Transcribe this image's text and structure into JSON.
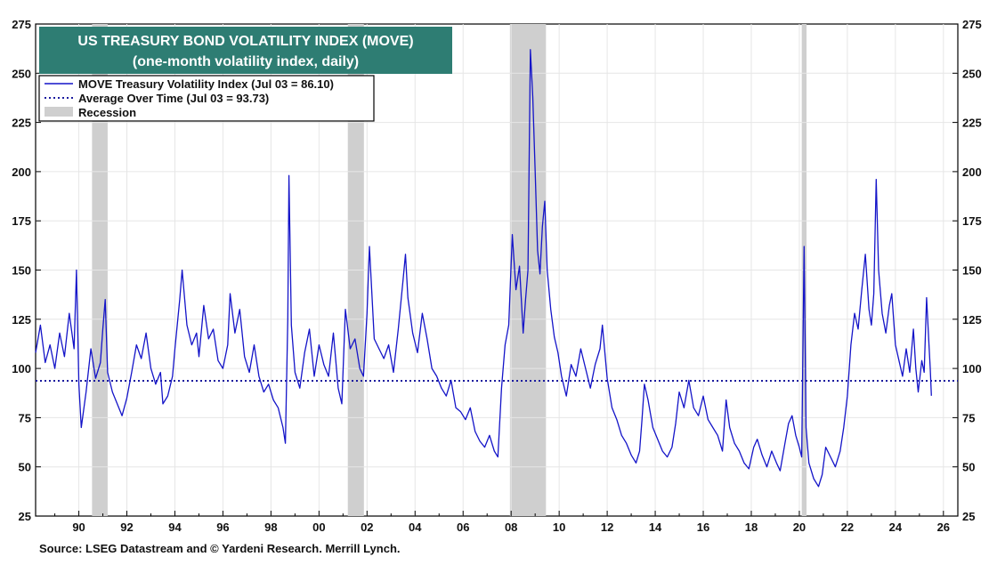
{
  "chart_data": {
    "type": "line",
    "title": "US TREASURY BOND VOLATILITY INDEX (MOVE)",
    "subtitle": "(one-month volatility index, daily)",
    "title_bg": "#2e7d73",
    "legend": {
      "placement": "top-left",
      "items": [
        {
          "label": "MOVE Treasury Volatility Index (Jul 03 = 86.10)",
          "style": "solid-line",
          "color": "#1414c8"
        },
        {
          "label": "Average Over Time (Jul 03 = 93.73)",
          "style": "dotted-line",
          "color": "#1a1a9e"
        },
        {
          "label": "Recession",
          "style": "band",
          "color": "#cfcfcf"
        }
      ]
    },
    "x_tick_labels": [
      "90",
      "92",
      "94",
      "96",
      "98",
      "00",
      "02",
      "04",
      "06",
      "08",
      "10",
      "12",
      "14",
      "16",
      "18",
      "20",
      "22",
      "24",
      "26"
    ],
    "x_tick_years": [
      1990,
      1992,
      1994,
      1996,
      1998,
      2000,
      2002,
      2004,
      2006,
      2008,
      2010,
      2012,
      2014,
      2016,
      2018,
      2020,
      2022,
      2024,
      2026
    ],
    "y_ticks": [
      25,
      50,
      75,
      100,
      125,
      150,
      175,
      200,
      225,
      250,
      275
    ],
    "xlim": [
      1988.2,
      2026.6
    ],
    "ylim": [
      25,
      275
    ],
    "grid": true,
    "average": 93.73,
    "recessions": [
      [
        1990.55,
        1991.2
      ],
      [
        2001.2,
        2001.87
      ],
      [
        2007.95,
        2009.45
      ],
      [
        2020.1,
        2020.3
      ]
    ],
    "series": [
      {
        "name": "MOVE Treasury Volatility Index",
        "color": "#1414c8",
        "points": [
          [
            1988.2,
            108
          ],
          [
            1988.4,
            122
          ],
          [
            1988.6,
            103
          ],
          [
            1988.8,
            112
          ],
          [
            1989.0,
            100
          ],
          [
            1989.2,
            118
          ],
          [
            1989.4,
            106
          ],
          [
            1989.6,
            128
          ],
          [
            1989.8,
            110
          ],
          [
            1989.9,
            150
          ],
          [
            1990.0,
            92
          ],
          [
            1990.1,
            70
          ],
          [
            1990.3,
            88
          ],
          [
            1990.5,
            110
          ],
          [
            1990.7,
            95
          ],
          [
            1990.9,
            103
          ],
          [
            1991.0,
            120
          ],
          [
            1991.1,
            135
          ],
          [
            1991.2,
            98
          ],
          [
            1991.4,
            88
          ],
          [
            1991.6,
            82
          ],
          [
            1991.8,
            76
          ],
          [
            1992.0,
            85
          ],
          [
            1992.2,
            98
          ],
          [
            1992.4,
            112
          ],
          [
            1992.6,
            105
          ],
          [
            1992.8,
            118
          ],
          [
            1993.0,
            100
          ],
          [
            1993.2,
            92
          ],
          [
            1993.4,
            98
          ],
          [
            1993.5,
            82
          ],
          [
            1993.7,
            86
          ],
          [
            1993.9,
            96
          ],
          [
            1994.0,
            110
          ],
          [
            1994.2,
            135
          ],
          [
            1994.3,
            150
          ],
          [
            1994.5,
            122
          ],
          [
            1994.7,
            112
          ],
          [
            1994.9,
            118
          ],
          [
            1995.0,
            106
          ],
          [
            1995.2,
            132
          ],
          [
            1995.4,
            115
          ],
          [
            1995.6,
            120
          ],
          [
            1995.8,
            104
          ],
          [
            1996.0,
            100
          ],
          [
            1996.2,
            112
          ],
          [
            1996.3,
            138
          ],
          [
            1996.5,
            118
          ],
          [
            1996.7,
            130
          ],
          [
            1996.9,
            106
          ],
          [
            1997.1,
            98
          ],
          [
            1997.3,
            112
          ],
          [
            1997.5,
            96
          ],
          [
            1997.7,
            88
          ],
          [
            1997.9,
            92
          ],
          [
            1998.1,
            84
          ],
          [
            1998.3,
            80
          ],
          [
            1998.5,
            70
          ],
          [
            1998.6,
            62
          ],
          [
            1998.7,
            125
          ],
          [
            1998.75,
            198
          ],
          [
            1998.85,
            122
          ],
          [
            1999.0,
            98
          ],
          [
            1999.2,
            90
          ],
          [
            1999.4,
            108
          ],
          [
            1999.6,
            120
          ],
          [
            1999.8,
            96
          ],
          [
            2000.0,
            112
          ],
          [
            2000.2,
            102
          ],
          [
            2000.4,
            96
          ],
          [
            2000.6,
            118
          ],
          [
            2000.8,
            90
          ],
          [
            2000.95,
            82
          ],
          [
            2001.1,
            130
          ],
          [
            2001.3,
            110
          ],
          [
            2001.5,
            115
          ],
          [
            2001.7,
            100
          ],
          [
            2001.85,
            96
          ],
          [
            2002.0,
            128
          ],
          [
            2002.1,
            162
          ],
          [
            2002.3,
            115
          ],
          [
            2002.5,
            110
          ],
          [
            2002.7,
            105
          ],
          [
            2002.9,
            112
          ],
          [
            2003.1,
            98
          ],
          [
            2003.3,
            120
          ],
          [
            2003.5,
            145
          ],
          [
            2003.6,
            158
          ],
          [
            2003.7,
            136
          ],
          [
            2003.9,
            118
          ],
          [
            2004.1,
            108
          ],
          [
            2004.3,
            128
          ],
          [
            2004.5,
            115
          ],
          [
            2004.7,
            100
          ],
          [
            2004.9,
            96
          ],
          [
            2005.1,
            90
          ],
          [
            2005.3,
            86
          ],
          [
            2005.5,
            94
          ],
          [
            2005.7,
            80
          ],
          [
            2005.9,
            78
          ],
          [
            2006.1,
            74
          ],
          [
            2006.3,
            80
          ],
          [
            2006.5,
            68
          ],
          [
            2006.7,
            63
          ],
          [
            2006.9,
            60
          ],
          [
            2007.1,
            66
          ],
          [
            2007.3,
            58
          ],
          [
            2007.45,
            55
          ],
          [
            2007.6,
            90
          ],
          [
            2007.75,
            112
          ],
          [
            2007.9,
            122
          ],
          [
            2008.05,
            168
          ],
          [
            2008.2,
            140
          ],
          [
            2008.35,
            152
          ],
          [
            2008.5,
            118
          ],
          [
            2008.6,
            135
          ],
          [
            2008.7,
            150
          ],
          [
            2008.8,
            262
          ],
          [
            2008.9,
            238
          ],
          [
            2009.0,
            200
          ],
          [
            2009.1,
            160
          ],
          [
            2009.2,
            148
          ],
          [
            2009.3,
            172
          ],
          [
            2009.4,
            185
          ],
          [
            2009.5,
            150
          ],
          [
            2009.65,
            130
          ],
          [
            2009.8,
            116
          ],
          [
            2009.95,
            108
          ],
          [
            2010.1,
            96
          ],
          [
            2010.3,
            86
          ],
          [
            2010.5,
            102
          ],
          [
            2010.7,
            96
          ],
          [
            2010.9,
            110
          ],
          [
            2011.1,
            100
          ],
          [
            2011.3,
            90
          ],
          [
            2011.5,
            102
          ],
          [
            2011.7,
            110
          ],
          [
            2011.8,
            122
          ],
          [
            2012.0,
            95
          ],
          [
            2012.2,
            80
          ],
          [
            2012.4,
            74
          ],
          [
            2012.6,
            66
          ],
          [
            2012.8,
            62
          ],
          [
            2013.0,
            56
          ],
          [
            2013.2,
            52
          ],
          [
            2013.35,
            58
          ],
          [
            2013.45,
            74
          ],
          [
            2013.55,
            92
          ],
          [
            2013.7,
            84
          ],
          [
            2013.9,
            70
          ],
          [
            2014.1,
            64
          ],
          [
            2014.3,
            58
          ],
          [
            2014.5,
            55
          ],
          [
            2014.7,
            60
          ],
          [
            2014.85,
            72
          ],
          [
            2015.0,
            88
          ],
          [
            2015.2,
            80
          ],
          [
            2015.4,
            94
          ],
          [
            2015.6,
            80
          ],
          [
            2015.8,
            76
          ],
          [
            2016.0,
            86
          ],
          [
            2016.2,
            74
          ],
          [
            2016.4,
            70
          ],
          [
            2016.6,
            66
          ],
          [
            2016.8,
            58
          ],
          [
            2016.95,
            84
          ],
          [
            2017.1,
            70
          ],
          [
            2017.3,
            62
          ],
          [
            2017.5,
            58
          ],
          [
            2017.7,
            52
          ],
          [
            2017.9,
            49
          ],
          [
            2018.1,
            60
          ],
          [
            2018.25,
            64
          ],
          [
            2018.45,
            56
          ],
          [
            2018.65,
            50
          ],
          [
            2018.85,
            58
          ],
          [
            2019.05,
            52
          ],
          [
            2019.2,
            48
          ],
          [
            2019.4,
            62
          ],
          [
            2019.55,
            72
          ],
          [
            2019.7,
            76
          ],
          [
            2019.85,
            66
          ],
          [
            2020.0,
            60
          ],
          [
            2020.1,
            55
          ],
          [
            2020.2,
            162
          ],
          [
            2020.28,
            70
          ],
          [
            2020.4,
            52
          ],
          [
            2020.6,
            44
          ],
          [
            2020.8,
            40
          ],
          [
            2020.95,
            46
          ],
          [
            2021.1,
            60
          ],
          [
            2021.3,
            55
          ],
          [
            2021.5,
            50
          ],
          [
            2021.7,
            58
          ],
          [
            2021.85,
            70
          ],
          [
            2022.0,
            86
          ],
          [
            2022.15,
            112
          ],
          [
            2022.3,
            128
          ],
          [
            2022.45,
            120
          ],
          [
            2022.6,
            140
          ],
          [
            2022.75,
            158
          ],
          [
            2022.9,
            130
          ],
          [
            2023.0,
            122
          ],
          [
            2023.1,
            138
          ],
          [
            2023.2,
            196
          ],
          [
            2023.3,
            150
          ],
          [
            2023.45,
            128
          ],
          [
            2023.6,
            118
          ],
          [
            2023.75,
            132
          ],
          [
            2023.85,
            138
          ],
          [
            2024.0,
            112
          ],
          [
            2024.15,
            104
          ],
          [
            2024.3,
            96
          ],
          [
            2024.45,
            110
          ],
          [
            2024.6,
            98
          ],
          [
            2024.75,
            120
          ],
          [
            2024.85,
            100
          ],
          [
            2024.95,
            88
          ],
          [
            2025.1,
            104
          ],
          [
            2025.2,
            98
          ],
          [
            2025.3,
            136
          ],
          [
            2025.4,
            112
          ],
          [
            2025.45,
            100
          ],
          [
            2025.5,
            86.1
          ]
        ]
      },
      {
        "name": "Average Over Time",
        "color": "#1a1a9e",
        "value": 93.73
      }
    ]
  },
  "source": "Source: LSEG Datastream and © Yardeni Research. Merrill Lynch."
}
